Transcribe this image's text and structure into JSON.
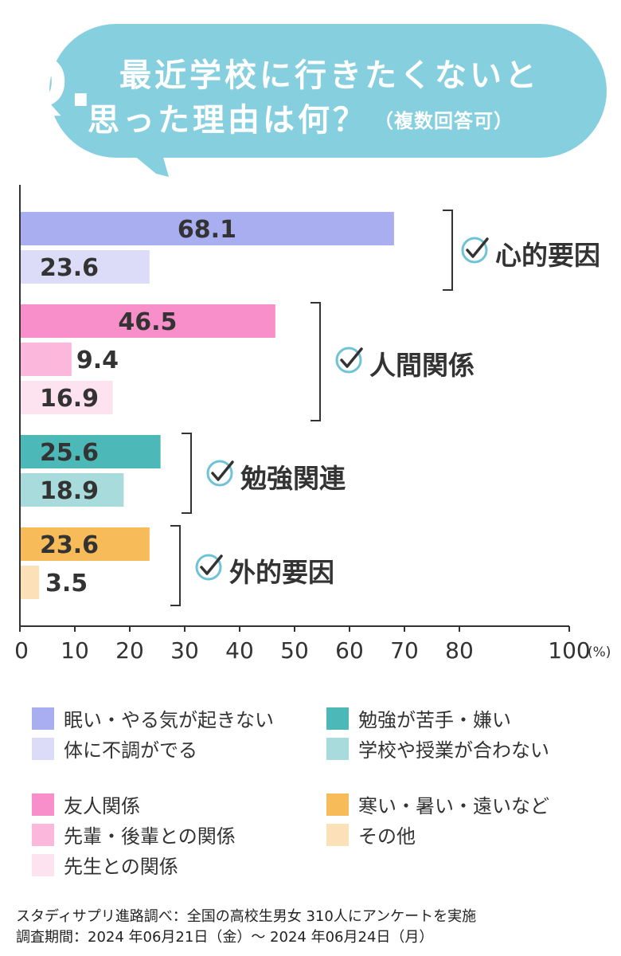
{
  "question": {
    "mark": "Q.",
    "line1": "最近学校に行きたくないと",
    "line2": "思った理由は何？",
    "note": "（複数回答可）",
    "bubble_color": "#86cfdf"
  },
  "chart_data": {
    "type": "bar",
    "orientation": "horizontal",
    "unit": "(%)",
    "xlim": [
      0,
      100
    ],
    "xticks": [
      "0",
      "10",
      "20",
      "30",
      "40",
      "50",
      "60",
      "70",
      "80",
      "100"
    ],
    "grid": false,
    "groups": [
      {
        "label": "心的要因",
        "bars": [
          {
            "name": "眠い・やる気が起きない",
            "value": 68.1,
            "label": "68.1",
            "color": "#a8aef0"
          },
          {
            "name": "体に不調がでる",
            "value": 23.6,
            "label": "23.6",
            "color": "#dcdcf8"
          }
        ]
      },
      {
        "label": "人間関係",
        "bars": [
          {
            "name": "友人関係",
            "value": 46.5,
            "label": "46.5",
            "color": "#f98fca"
          },
          {
            "name": "先輩・後輩との関係",
            "value": 9.4,
            "label": "9.4",
            "color": "#fbb8dc"
          },
          {
            "name": "先生との関係",
            "value": 16.9,
            "label": "16.9",
            "color": "#fde2f0"
          }
        ]
      },
      {
        "label": "勉強関連",
        "bars": [
          {
            "name": "勉強が苦手・嫌い",
            "value": 25.6,
            "label": "25.6",
            "color": "#4db8b8"
          },
          {
            "name": "学校や授業が合わない",
            "value": 18.9,
            "label": "18.9",
            "color": "#a8dcdc"
          }
        ]
      },
      {
        "label": "外的要因",
        "bars": [
          {
            "name": "寒い・暑い・遠いなど",
            "value": 23.6,
            "label": "23.6",
            "color": "#f8bb5a"
          },
          {
            "name": "その他",
            "value": 3.5,
            "label": "3.5",
            "color": "#fce0b8"
          }
        ]
      }
    ],
    "legend": [
      {
        "label": "眠い・やる気が起きない",
        "color": "#a8aef0"
      },
      {
        "label": "体に不調がでる",
        "color": "#dcdcf8"
      },
      {
        "label": "友人関係",
        "color": "#f98fca"
      },
      {
        "label": "先輩・後輩との関係",
        "color": "#fbb8dc"
      },
      {
        "label": "先生との関係",
        "color": "#fde2f0"
      },
      {
        "label": "勉強が苦手・嫌い",
        "color": "#4db8b8"
      },
      {
        "label": "学校や授業が合わない",
        "color": "#a8dcdc"
      },
      {
        "label": "寒い・暑い・遠いなど",
        "color": "#f8bb5a"
      },
      {
        "label": "その他",
        "color": "#fce0b8"
      }
    ]
  },
  "footer": {
    "line1": "スタディサプリ進路調べ：全国の高校生男女 310人にアンケートを実施",
    "line2": "調査期間：2024 年06月21日（金）～ 2024 年06月24日（月）"
  }
}
